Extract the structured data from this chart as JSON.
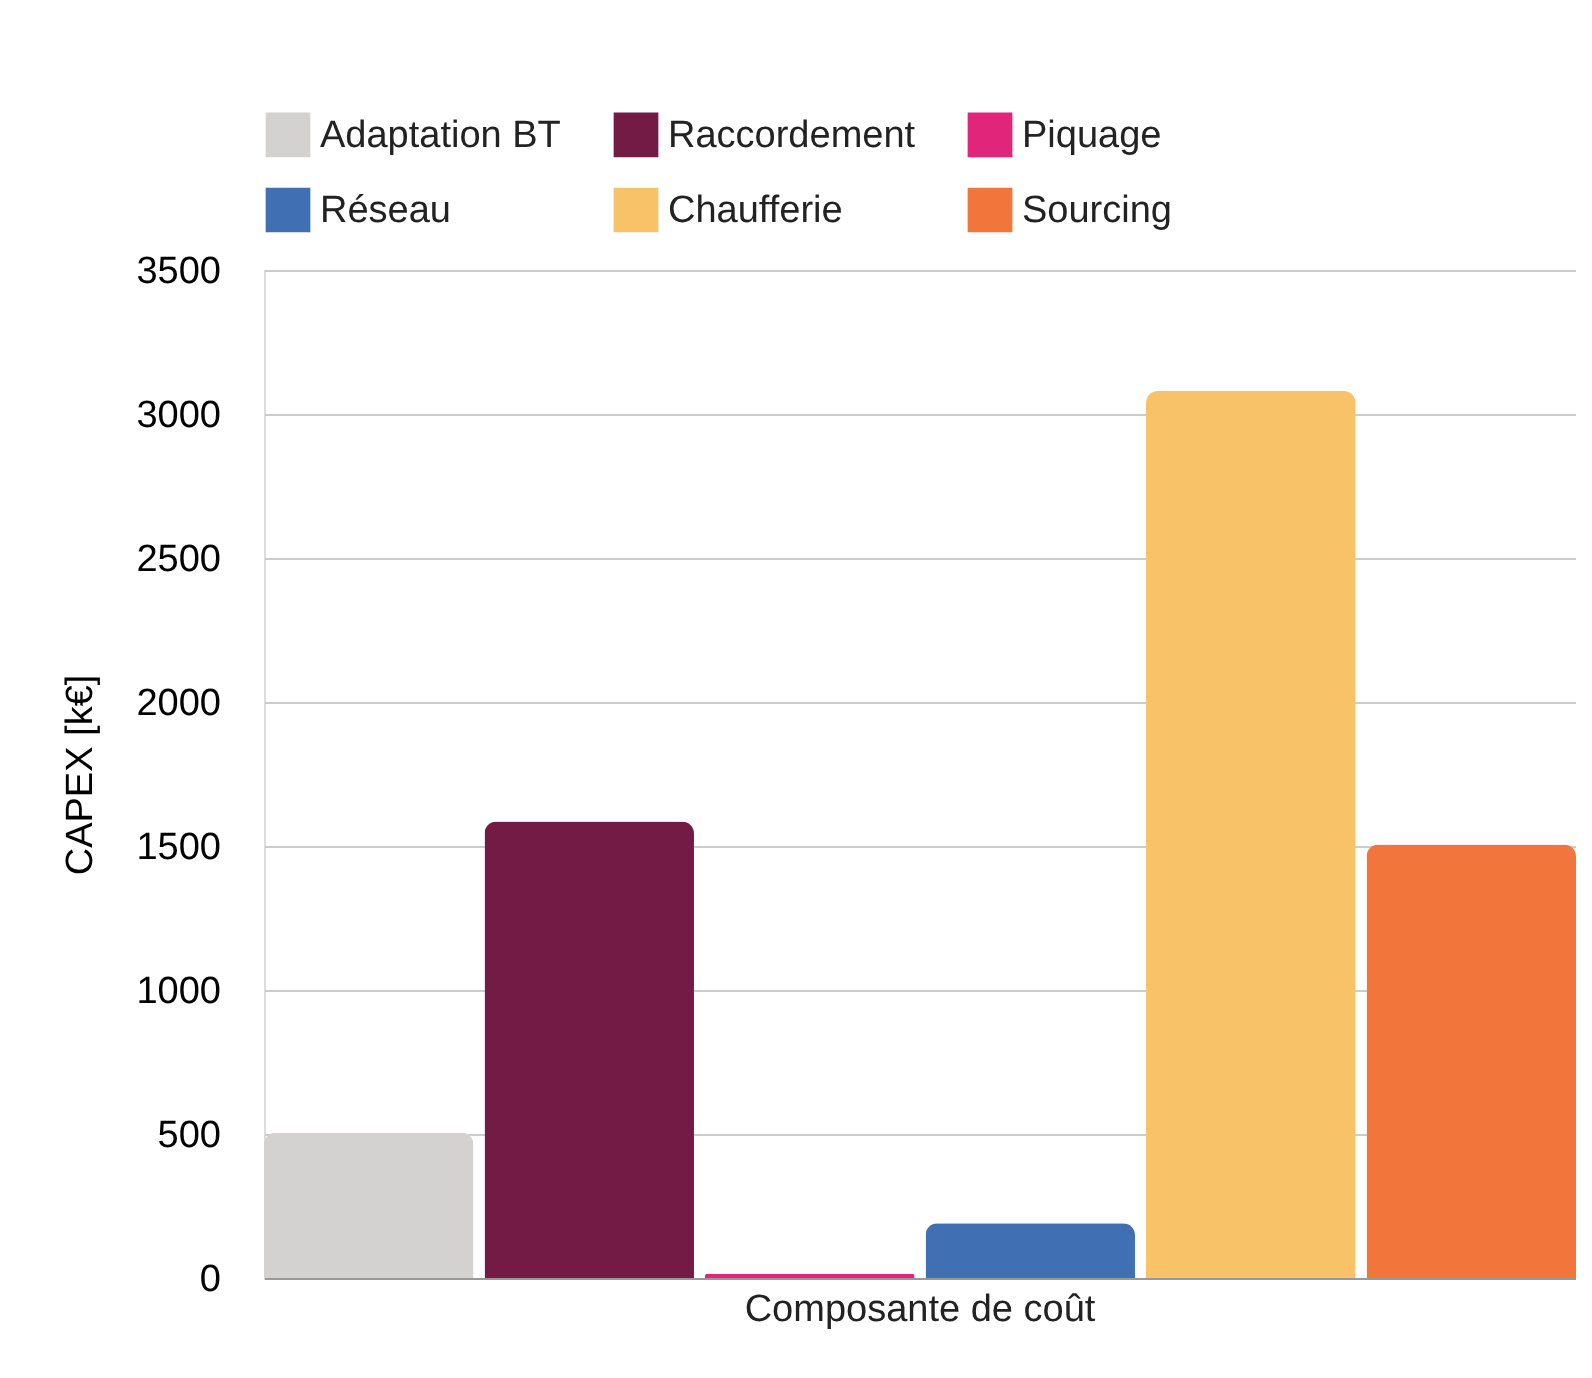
{
  "chart_data": {
    "type": "bar",
    "ylabel": "CAPEX [k€]",
    "categories": [
      "Composante de coût"
    ],
    "series": [
      {
        "name": "Adaptation BT",
        "color": "#d3d2d0",
        "values": [
          505
        ]
      },
      {
        "name": "Raccordement",
        "color": "#731a45",
        "values": [
          1585
        ]
      },
      {
        "name": "Piquage",
        "color": "#e0257b",
        "values": [
          15
        ]
      },
      {
        "name": "Réseau",
        "color": "#416fb3",
        "values": [
          190
        ]
      },
      {
        "name": "Chaufferie",
        "color": "#f8c268",
        "values": [
          3080
        ]
      },
      {
        "name": "Sourcing",
        "color": "#f2763c",
        "values": [
          1505
        ]
      }
    ],
    "ylim": [
      0,
      3500
    ],
    "yticks": [
      0,
      500,
      1000,
      1500,
      2000,
      2500,
      3000,
      3500
    ],
    "grid": "y",
    "legend": "top"
  }
}
